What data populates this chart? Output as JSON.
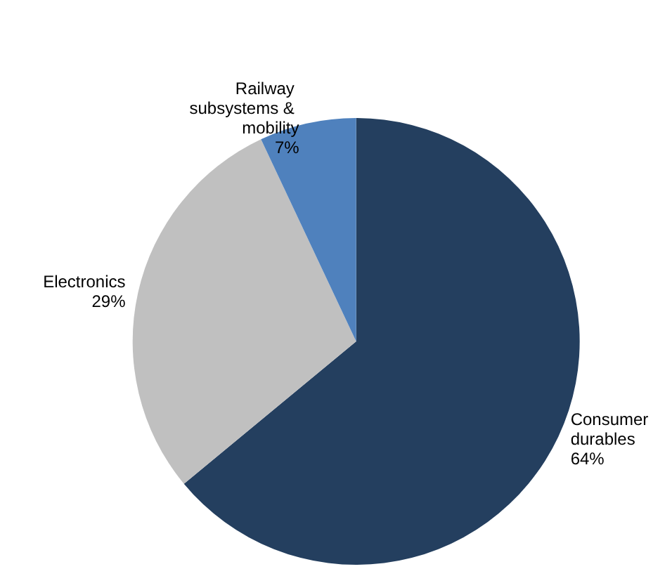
{
  "chart_data": {
    "type": "pie",
    "categories": [
      "Consumer durables",
      "Electronics",
      "Railway subsystems & mobility"
    ],
    "values": [
      64,
      29,
      7
    ],
    "colors": [
      "#243f5f",
      "#c0c0c0",
      "#4f81bd"
    ],
    "value_labels": [
      "64%",
      "29%",
      "7%"
    ],
    "legend": false
  }
}
